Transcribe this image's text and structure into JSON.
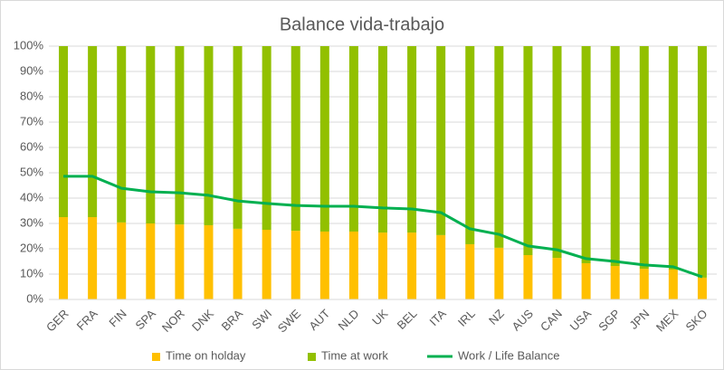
{
  "chart_data": {
    "type": "bar",
    "title": "Balance vida-trabajo",
    "categories": [
      "GER",
      "FRA",
      "FIN",
      "SPA",
      "NOR",
      "DNK",
      "BRA",
      "SWI",
      "SWE",
      "AUT",
      "NLD",
      "UK",
      "BEL",
      "ITA",
      "IRL",
      "NZ",
      "AUS",
      "CAN",
      "USA",
      "SGP",
      "JPN",
      "MEX",
      "SKO"
    ],
    "series": [
      {
        "name": "Time on holday",
        "type": "bar",
        "color": "#ffc000",
        "values": [
          32.5,
          32.5,
          30.4,
          30,
          29.6,
          29.3,
          27.9,
          27.5,
          27.1,
          26.8,
          26.8,
          26.4,
          26.4,
          25.4,
          21.8,
          20.4,
          17.5,
          16.4,
          14.3,
          13.2,
          12.1,
          11.8,
          8.6
        ]
      },
      {
        "name": "Time at work",
        "type": "bar",
        "color": "#92c000",
        "values": [
          67.5,
          67.5,
          69.6,
          70,
          70.4,
          70.7,
          72.1,
          72.5,
          72.9,
          73.2,
          73.2,
          73.6,
          73.6,
          74.6,
          78.2,
          79.6,
          82.5,
          83.6,
          85.7,
          86.8,
          87.9,
          88.2,
          91.4
        ]
      },
      {
        "name": "Work / Life Balance",
        "type": "line",
        "color": "#00b050",
        "values": [
          48.6,
          48.6,
          43.9,
          42.5,
          42.1,
          41.1,
          38.9,
          37.9,
          37.1,
          36.8,
          36.8,
          36.1,
          35.7,
          34.3,
          27.9,
          25.7,
          21.1,
          19.6,
          16.1,
          15,
          13.6,
          12.9,
          8.9
        ]
      }
    ],
    "stacked": true,
    "ylim": [
      0,
      100
    ],
    "yticks": [
      {
        "value": 0,
        "label": "0%"
      },
      {
        "value": 10,
        "label": "10%"
      },
      {
        "value": 20,
        "label": "20%"
      },
      {
        "value": 30,
        "label": "30%"
      },
      {
        "value": 40,
        "label": "40%"
      },
      {
        "value": 50,
        "label": "50%"
      },
      {
        "value": 60,
        "label": "60%"
      },
      {
        "value": 70,
        "label": "70%"
      },
      {
        "value": 80,
        "label": "80%"
      },
      {
        "value": 90,
        "label": "90%"
      },
      {
        "value": 100,
        "label": "100%"
      }
    ],
    "grid": true,
    "legend": "bottom"
  }
}
